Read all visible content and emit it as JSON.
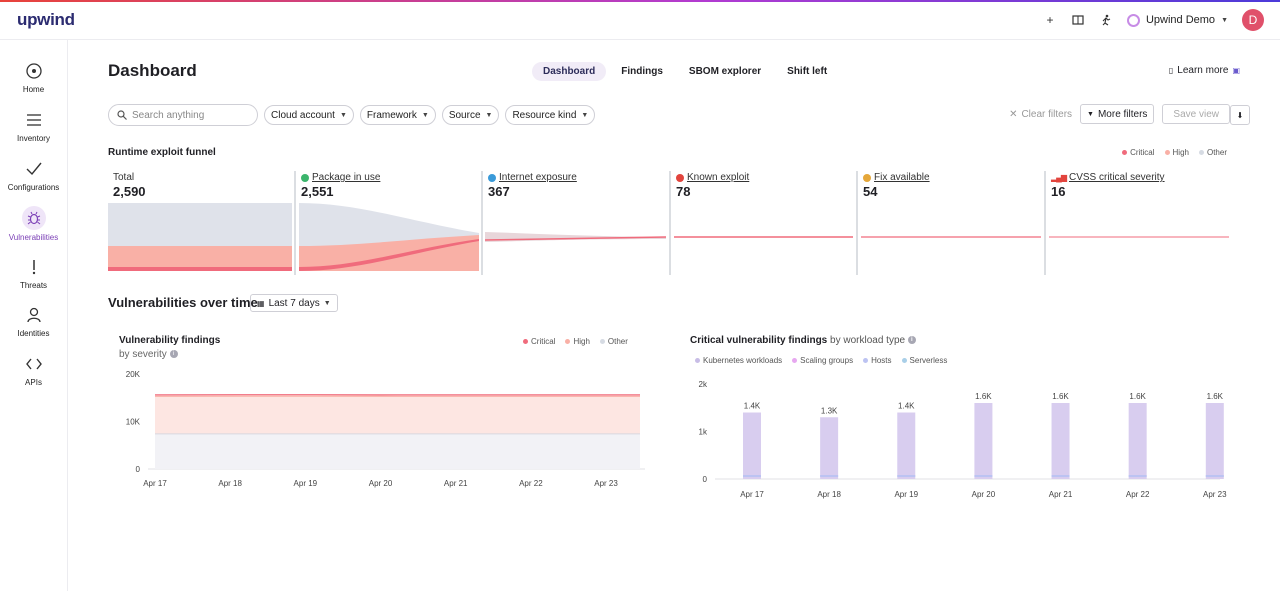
{
  "app": {
    "logo": "upwind",
    "org_name": "Upwind Demo",
    "avatar_initial": "D"
  },
  "sidebar": {
    "items": [
      {
        "label": "Home",
        "icon": "home-icon"
      },
      {
        "label": "Inventory",
        "icon": "inventory-icon"
      },
      {
        "label": "Configurations",
        "icon": "check-icon"
      },
      {
        "label": "Vulnerabilities",
        "icon": "bug-icon",
        "active": true
      },
      {
        "label": "Threats",
        "icon": "exclamation-icon"
      },
      {
        "label": "Identities",
        "icon": "person-icon"
      },
      {
        "label": "APIs",
        "icon": "code-icon"
      }
    ]
  },
  "header": {
    "title": "Dashboard",
    "tabs": [
      "Dashboard",
      "Findings",
      "SBOM explorer",
      "Shift left"
    ],
    "active_tab": "Dashboard",
    "learn_more": "Learn more"
  },
  "filters": {
    "search_placeholder": "Search anything",
    "chips": [
      "Cloud account",
      "Framework",
      "Source",
      "Resource kind"
    ],
    "clear": "Clear filters",
    "more": "More filters",
    "save": "Save view"
  },
  "funnel": {
    "title": "Runtime exploit funnel",
    "legend": [
      "Critical",
      "High",
      "Other"
    ],
    "stages": [
      {
        "label": "Total",
        "value": "2,590",
        "icon": "none"
      },
      {
        "label": "Package in use",
        "value": "2,551",
        "icon": "play-icon"
      },
      {
        "label": "Internet exposure",
        "value": "367",
        "icon": "globe-icon"
      },
      {
        "label": "Known exploit",
        "value": "78",
        "icon": "alert-icon"
      },
      {
        "label": "Fix available",
        "value": "54",
        "icon": "key-icon"
      },
      {
        "label": "CVSS critical severity",
        "value": "16",
        "icon": "signal-icon"
      }
    ]
  },
  "vot": {
    "title": "Vulnerabilities over time",
    "range": "Last 7 days"
  },
  "severity_card": {
    "title": "Vulnerability findings",
    "subtitle": "by severity",
    "legend": [
      "Critical",
      "High",
      "Other"
    ]
  },
  "workload_card": {
    "title": "Critical vulnerability findings",
    "title_suffix": "by workload type",
    "legend": [
      "Kubernetes workloads",
      "Scaling groups",
      "Hosts",
      "Serverless"
    ]
  },
  "colors": {
    "critical": "#f06b7c",
    "high": "#f9b0a6",
    "other": "#d6dbe3",
    "accent": "#7b3fb6",
    "k8s": "#d3c6ec",
    "scaling": "#e7a8f0",
    "hosts": "#bcc3f2",
    "serverless": "#a9cfe8"
  },
  "chart_data": [
    {
      "type": "area",
      "title": "Vulnerability findings",
      "subtitle": "by severity",
      "categories": [
        "Apr 17",
        "Apr 18",
        "Apr 19",
        "Apr 20",
        "Apr 21",
        "Apr 22",
        "Apr 23"
      ],
      "yticks": [
        "0",
        "10K",
        "20K"
      ],
      "ylim": [
        0,
        20000
      ],
      "series": [
        {
          "name": "Other",
          "values": [
            7400,
            7400,
            7400,
            7400,
            7400,
            7400,
            7400
          ]
        },
        {
          "name": "High",
          "values": [
            7900,
            7950,
            7950,
            7900,
            7900,
            7900,
            7900
          ]
        },
        {
          "name": "Critical",
          "values": [
            300,
            300,
            300,
            300,
            300,
            300,
            300
          ]
        }
      ],
      "legend": "top-right"
    },
    {
      "type": "bar",
      "title": "Critical vulnerability findings",
      "subtitle": "by workload type",
      "categories": [
        "Apr 17",
        "Apr 18",
        "Apr 19",
        "Apr 20",
        "Apr 21",
        "Apr 22",
        "Apr 23"
      ],
      "values": [
        1400,
        1300,
        1400,
        1600,
        1600,
        1600,
        1600
      ],
      "labels": [
        "1.4K",
        "1.3K",
        "1.4K",
        "1.6K",
        "1.6K",
        "1.6K",
        "1.6K"
      ],
      "yticks": [
        "0",
        "1k",
        "2k"
      ],
      "ylim": [
        0,
        2000
      ],
      "legend": "top-left"
    }
  ]
}
